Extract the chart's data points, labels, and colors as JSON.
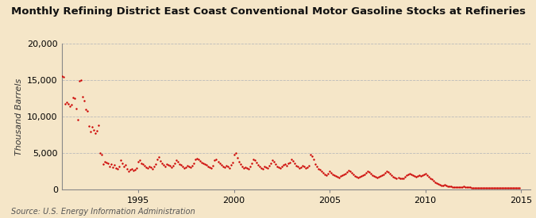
{
  "title": "Monthly Refining District East Coast Conventional Motor Gasoline Stocks at Refineries",
  "ylabel": "Thousand Barrels",
  "source": "Source: U.S. Energy Information Administration",
  "background_color": "#f5e6c8",
  "dot_color": "#cc0000",
  "dot_size": 3,
  "xlim": [
    1991.0,
    2015.5
  ],
  "ylim": [
    0,
    20000
  ],
  "yticks": [
    0,
    5000,
    10000,
    15000,
    20000
  ],
  "xticks": [
    1995,
    2000,
    2005,
    2010,
    2015
  ],
  "grid_color": "#bbbbbb",
  "title_fontsize": 9.5,
  "ylabel_fontsize": 8,
  "tick_fontsize": 8,
  "series": [
    [
      1991.0,
      15600
    ],
    [
      1991.083,
      15400
    ],
    [
      1991.167,
      11800
    ],
    [
      1991.25,
      12000
    ],
    [
      1991.333,
      11700
    ],
    [
      1991.417,
      11400
    ],
    [
      1991.5,
      11600
    ],
    [
      1991.583,
      12600
    ],
    [
      1991.667,
      12500
    ],
    [
      1991.75,
      11100
    ],
    [
      1991.833,
      9600
    ],
    [
      1991.917,
      14900
    ],
    [
      1992.0,
      15000
    ],
    [
      1992.083,
      12700
    ],
    [
      1992.167,
      12200
    ],
    [
      1992.25,
      11000
    ],
    [
      1992.333,
      10800
    ],
    [
      1992.417,
      8700
    ],
    [
      1992.5,
      7900
    ],
    [
      1992.583,
      8600
    ],
    [
      1992.667,
      8200
    ],
    [
      1992.75,
      7700
    ],
    [
      1992.833,
      8100
    ],
    [
      1992.917,
      8800
    ],
    [
      1993.0,
      5000
    ],
    [
      1993.083,
      4800
    ],
    [
      1993.167,
      3500
    ],
    [
      1993.25,
      3800
    ],
    [
      1993.333,
      3700
    ],
    [
      1993.417,
      3600
    ],
    [
      1993.5,
      3200
    ],
    [
      1993.583,
      3500
    ],
    [
      1993.667,
      3100
    ],
    [
      1993.75,
      3400
    ],
    [
      1993.833,
      3000
    ],
    [
      1993.917,
      2900
    ],
    [
      1994.0,
      3200
    ],
    [
      1994.083,
      4000
    ],
    [
      1994.167,
      3600
    ],
    [
      1994.25,
      3200
    ],
    [
      1994.333,
      3400
    ],
    [
      1994.417,
      2800
    ],
    [
      1994.5,
      2500
    ],
    [
      1994.583,
      2700
    ],
    [
      1994.667,
      2800
    ],
    [
      1994.75,
      2600
    ],
    [
      1994.833,
      2700
    ],
    [
      1994.917,
      3000
    ],
    [
      1995.0,
      3800
    ],
    [
      1995.083,
      4000
    ],
    [
      1995.167,
      3600
    ],
    [
      1995.25,
      3500
    ],
    [
      1995.333,
      3300
    ],
    [
      1995.417,
      3100
    ],
    [
      1995.5,
      3000
    ],
    [
      1995.583,
      3200
    ],
    [
      1995.667,
      3100
    ],
    [
      1995.75,
      2900
    ],
    [
      1995.833,
      3200
    ],
    [
      1995.917,
      3500
    ],
    [
      1996.0,
      4200
    ],
    [
      1996.083,
      4500
    ],
    [
      1996.167,
      3900
    ],
    [
      1996.25,
      3600
    ],
    [
      1996.333,
      3400
    ],
    [
      1996.417,
      3200
    ],
    [
      1996.5,
      3500
    ],
    [
      1996.583,
      3400
    ],
    [
      1996.667,
      3300
    ],
    [
      1996.75,
      3100
    ],
    [
      1996.833,
      3300
    ],
    [
      1996.917,
      3600
    ],
    [
      1997.0,
      4000
    ],
    [
      1997.083,
      3800
    ],
    [
      1997.167,
      3500
    ],
    [
      1997.25,
      3400
    ],
    [
      1997.333,
      3200
    ],
    [
      1997.417,
      3000
    ],
    [
      1997.5,
      3100
    ],
    [
      1997.583,
      3300
    ],
    [
      1997.667,
      3200
    ],
    [
      1997.75,
      3100
    ],
    [
      1997.833,
      3300
    ],
    [
      1997.917,
      3600
    ],
    [
      1998.0,
      4100
    ],
    [
      1998.083,
      4300
    ],
    [
      1998.167,
      4200
    ],
    [
      1998.25,
      3900
    ],
    [
      1998.333,
      3700
    ],
    [
      1998.417,
      3600
    ],
    [
      1998.5,
      3500
    ],
    [
      1998.583,
      3400
    ],
    [
      1998.667,
      3200
    ],
    [
      1998.75,
      3100
    ],
    [
      1998.833,
      3000
    ],
    [
      1998.917,
      3300
    ],
    [
      1999.0,
      4000
    ],
    [
      1999.083,
      4200
    ],
    [
      1999.167,
      3800
    ],
    [
      1999.25,
      3600
    ],
    [
      1999.333,
      3400
    ],
    [
      1999.417,
      3200
    ],
    [
      1999.5,
      3100
    ],
    [
      1999.583,
      3300
    ],
    [
      1999.667,
      3200
    ],
    [
      1999.75,
      3000
    ],
    [
      1999.833,
      3400
    ],
    [
      1999.917,
      3700
    ],
    [
      2000.0,
      4800
    ],
    [
      2000.083,
      5000
    ],
    [
      2000.167,
      4400
    ],
    [
      2000.25,
      3800
    ],
    [
      2000.333,
      3500
    ],
    [
      2000.417,
      3200
    ],
    [
      2000.5,
      3000
    ],
    [
      2000.583,
      3100
    ],
    [
      2000.667,
      3000
    ],
    [
      2000.75,
      2900
    ],
    [
      2000.833,
      3200
    ],
    [
      2000.917,
      3600
    ],
    [
      2001.0,
      4200
    ],
    [
      2001.083,
      4000
    ],
    [
      2001.167,
      3700
    ],
    [
      2001.25,
      3400
    ],
    [
      2001.333,
      3200
    ],
    [
      2001.417,
      3000
    ],
    [
      2001.5,
      2900
    ],
    [
      2001.583,
      3200
    ],
    [
      2001.667,
      3100
    ],
    [
      2001.75,
      3000
    ],
    [
      2001.833,
      3300
    ],
    [
      2001.917,
      3600
    ],
    [
      2002.0,
      4000
    ],
    [
      2002.083,
      3800
    ],
    [
      2002.167,
      3500
    ],
    [
      2002.25,
      3200
    ],
    [
      2002.333,
      3100
    ],
    [
      2002.417,
      3000
    ],
    [
      2002.5,
      3200
    ],
    [
      2002.583,
      3400
    ],
    [
      2002.667,
      3500
    ],
    [
      2002.75,
      3300
    ],
    [
      2002.833,
      3600
    ],
    [
      2002.917,
      3700
    ],
    [
      2003.0,
      4100
    ],
    [
      2003.083,
      3900
    ],
    [
      2003.167,
      3600
    ],
    [
      2003.25,
      3300
    ],
    [
      2003.333,
      3200
    ],
    [
      2003.417,
      3000
    ],
    [
      2003.5,
      3100
    ],
    [
      2003.583,
      3300
    ],
    [
      2003.667,
      3200
    ],
    [
      2003.75,
      3000
    ],
    [
      2003.833,
      3100
    ],
    [
      2003.917,
      3300
    ],
    [
      2004.0,
      4800
    ],
    [
      2004.083,
      4600
    ],
    [
      2004.167,
      4100
    ],
    [
      2004.25,
      3500
    ],
    [
      2004.333,
      3200
    ],
    [
      2004.417,
      2900
    ],
    [
      2004.5,
      2700
    ],
    [
      2004.583,
      2500
    ],
    [
      2004.667,
      2300
    ],
    [
      2004.75,
      2100
    ],
    [
      2004.833,
      2000
    ],
    [
      2004.917,
      2200
    ],
    [
      2005.0,
      2500
    ],
    [
      2005.083,
      2300
    ],
    [
      2005.167,
      2100
    ],
    [
      2005.25,
      2000
    ],
    [
      2005.333,
      1900
    ],
    [
      2005.417,
      1800
    ],
    [
      2005.5,
      1700
    ],
    [
      2005.583,
      1900
    ],
    [
      2005.667,
      2000
    ],
    [
      2005.75,
      2100
    ],
    [
      2005.833,
      2200
    ],
    [
      2005.917,
      2400
    ],
    [
      2006.0,
      2600
    ],
    [
      2006.083,
      2500
    ],
    [
      2006.167,
      2300
    ],
    [
      2006.25,
      2100
    ],
    [
      2006.333,
      1900
    ],
    [
      2006.417,
      1800
    ],
    [
      2006.5,
      1700
    ],
    [
      2006.583,
      1800
    ],
    [
      2006.667,
      1900
    ],
    [
      2006.75,
      2000
    ],
    [
      2006.833,
      2100
    ],
    [
      2006.917,
      2300
    ],
    [
      2007.0,
      2500
    ],
    [
      2007.083,
      2400
    ],
    [
      2007.167,
      2200
    ],
    [
      2007.25,
      2000
    ],
    [
      2007.333,
      1900
    ],
    [
      2007.417,
      1800
    ],
    [
      2007.5,
      1700
    ],
    [
      2007.583,
      1800
    ],
    [
      2007.667,
      1900
    ],
    [
      2007.75,
      2000
    ],
    [
      2007.833,
      2100
    ],
    [
      2007.917,
      2300
    ],
    [
      2008.0,
      2500
    ],
    [
      2008.083,
      2400
    ],
    [
      2008.167,
      2200
    ],
    [
      2008.25,
      2000
    ],
    [
      2008.333,
      1800
    ],
    [
      2008.417,
      1700
    ],
    [
      2008.5,
      1600
    ],
    [
      2008.583,
      1700
    ],
    [
      2008.667,
      1600
    ],
    [
      2008.75,
      1500
    ],
    [
      2008.833,
      1600
    ],
    [
      2008.917,
      1800
    ],
    [
      2009.0,
      2000
    ],
    [
      2009.083,
      2100
    ],
    [
      2009.167,
      2200
    ],
    [
      2009.25,
      2100
    ],
    [
      2009.333,
      2000
    ],
    [
      2009.417,
      1900
    ],
    [
      2009.5,
      1800
    ],
    [
      2009.583,
      1900
    ],
    [
      2009.667,
      2000
    ],
    [
      2009.75,
      1900
    ],
    [
      2009.833,
      2000
    ],
    [
      2009.917,
      2100
    ],
    [
      2010.0,
      2200
    ],
    [
      2010.083,
      2000
    ],
    [
      2010.167,
      1800
    ],
    [
      2010.25,
      1600
    ],
    [
      2010.333,
      1400
    ],
    [
      2010.417,
      1200
    ],
    [
      2010.5,
      1000
    ],
    [
      2010.583,
      900
    ],
    [
      2010.667,
      800
    ],
    [
      2010.75,
      700
    ],
    [
      2010.833,
      600
    ],
    [
      2010.917,
      600
    ],
    [
      2011.0,
      700
    ],
    [
      2011.083,
      600
    ],
    [
      2011.167,
      500
    ],
    [
      2011.25,
      500
    ],
    [
      2011.333,
      450
    ],
    [
      2011.417,
      400
    ],
    [
      2011.5,
      400
    ],
    [
      2011.583,
      400
    ],
    [
      2011.667,
      400
    ],
    [
      2011.75,
      400
    ],
    [
      2011.833,
      350
    ],
    [
      2011.917,
      400
    ],
    [
      2012.0,
      450
    ],
    [
      2012.083,
      400
    ],
    [
      2012.167,
      350
    ],
    [
      2012.25,
      300
    ],
    [
      2012.333,
      300
    ],
    [
      2012.417,
      250
    ],
    [
      2012.5,
      250
    ],
    [
      2012.583,
      250
    ],
    [
      2012.667,
      250
    ],
    [
      2012.75,
      250
    ],
    [
      2012.833,
      200
    ],
    [
      2012.917,
      200
    ],
    [
      2013.0,
      250
    ],
    [
      2013.083,
      250
    ],
    [
      2013.167,
      200
    ],
    [
      2013.25,
      200
    ],
    [
      2013.333,
      200
    ],
    [
      2013.417,
      200
    ],
    [
      2013.5,
      200
    ],
    [
      2013.583,
      200
    ],
    [
      2013.667,
      200
    ],
    [
      2013.75,
      200
    ],
    [
      2013.833,
      200
    ],
    [
      2013.917,
      200
    ],
    [
      2014.0,
      200
    ],
    [
      2014.083,
      200
    ],
    [
      2014.167,
      200
    ],
    [
      2014.25,
      200
    ],
    [
      2014.333,
      200
    ],
    [
      2014.417,
      200
    ],
    [
      2014.5,
      200
    ],
    [
      2014.583,
      200
    ],
    [
      2014.667,
      200
    ],
    [
      2014.75,
      200
    ],
    [
      2014.833,
      200
    ],
    [
      2014.917,
      200
    ]
  ]
}
